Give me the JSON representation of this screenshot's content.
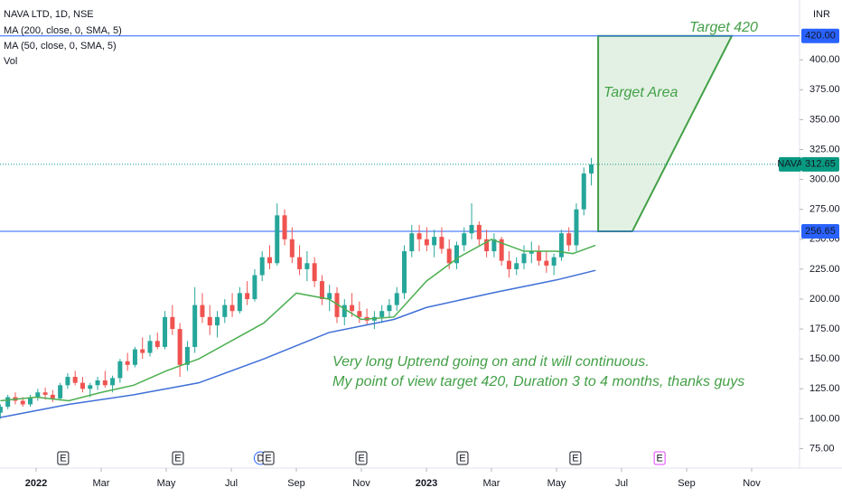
{
  "chart_data": {
    "type": "candlestick",
    "title": "NAVA LTD, 1D, NSE",
    "currency": "INR",
    "xlim": [
      -1.111,
      23.472
    ],
    "ylim": [
      61,
      450
    ],
    "xticks": [
      {
        "value": 0,
        "label": "2022"
      },
      {
        "value": 2,
        "label": "Mar"
      },
      {
        "value": 4,
        "label": "May"
      },
      {
        "value": 6,
        "label": "Jul"
      },
      {
        "value": 8,
        "label": "Sep"
      },
      {
        "value": 10,
        "label": "Nov"
      },
      {
        "value": 12,
        "label": "2023"
      },
      {
        "value": 14,
        "label": "Mar"
      },
      {
        "value": 16,
        "label": "May"
      },
      {
        "value": 18,
        "label": "Jul"
      },
      {
        "value": 20,
        "label": "Sep"
      },
      {
        "value": 22,
        "label": "Nov"
      }
    ],
    "yticks": [
      {
        "value": 75,
        "label": "75.00"
      },
      {
        "value": 100,
        "label": "100.00"
      },
      {
        "value": 125,
        "label": "125.00"
      },
      {
        "value": 150,
        "label": "150.00"
      },
      {
        "value": 175,
        "label": "175.00"
      },
      {
        "value": 200,
        "label": "200.00"
      },
      {
        "value": 225,
        "label": "225.00"
      },
      {
        "value": 250,
        "label": "250.00"
      },
      {
        "value": 275,
        "label": "275.00"
      },
      {
        "value": 300,
        "label": "300.00"
      },
      {
        "value": 325,
        "label": "325.00"
      },
      {
        "value": 350,
        "label": "350.00"
      },
      {
        "value": 375,
        "label": "375.00"
      },
      {
        "value": 400,
        "label": "400.00"
      }
    ],
    "up_color": "#26a69a",
    "down_color": "#ef5350",
    "x": [
      -1.1,
      -0.87,
      -0.64,
      -0.41,
      -0.18,
      0.05,
      0.28,
      0.51,
      0.74,
      0.97,
      1.2,
      1.43,
      1.66,
      1.89,
      2.12,
      2.35,
      2.58,
      2.81,
      3.04,
      3.27,
      3.5,
      3.73,
      3.96,
      4.19,
      4.42,
      4.65,
      4.88,
      5.11,
      5.34,
      5.57,
      5.8,
      6.03,
      6.26,
      6.49,
      6.72,
      6.95,
      7.18,
      7.41,
      7.64,
      7.87,
      8.1,
      8.33,
      8.56,
      8.79,
      9.02,
      9.25,
      9.48,
      9.71,
      9.94,
      10.17,
      10.4,
      10.63,
      10.86,
      11.09,
      11.32,
      11.55,
      11.78,
      12.01,
      12.24,
      12.47,
      12.7,
      12.93,
      13.16,
      13.39,
      13.62,
      13.85,
      14.08,
      14.31,
      14.54,
      14.77,
      15.0,
      15.23,
      15.46,
      15.69,
      15.92,
      16.15,
      16.38,
      16.61,
      16.84,
      17.07
    ],
    "candles": [
      [
        105,
        112,
        100,
        110
      ],
      [
        110,
        120,
        108,
        118
      ],
      [
        118,
        122,
        112,
        115
      ],
      [
        115,
        118,
        110,
        112
      ],
      [
        112,
        120,
        110,
        118
      ],
      [
        118,
        125,
        115,
        122
      ],
      [
        122,
        126,
        116,
        120
      ],
      [
        120,
        124,
        114,
        117
      ],
      [
        117,
        130,
        115,
        128
      ],
      [
        128,
        138,
        125,
        135
      ],
      [
        135,
        140,
        128,
        130
      ],
      [
        130,
        135,
        122,
        125
      ],
      [
        125,
        130,
        118,
        128
      ],
      [
        128,
        135,
        124,
        132
      ],
      [
        132,
        140,
        126,
        128
      ],
      [
        128,
        136,
        122,
        134
      ],
      [
        134,
        150,
        130,
        148
      ],
      [
        148,
        155,
        140,
        145
      ],
      [
        145,
        160,
        143,
        158
      ],
      [
        158,
        168,
        150,
        155
      ],
      [
        155,
        170,
        152,
        165
      ],
      [
        165,
        172,
        158,
        160
      ],
      [
        160,
        190,
        158,
        185
      ],
      [
        185,
        195,
        170,
        175
      ],
      [
        175,
        180,
        135,
        145
      ],
      [
        145,
        165,
        140,
        160
      ],
      [
        160,
        210,
        155,
        195
      ],
      [
        195,
        205,
        180,
        185
      ],
      [
        185,
        195,
        170,
        178
      ],
      [
        178,
        190,
        168,
        185
      ],
      [
        185,
        200,
        180,
        195
      ],
      [
        195,
        205,
        185,
        190
      ],
      [
        190,
        210,
        188,
        205
      ],
      [
        205,
        215,
        195,
        200
      ],
      [
        200,
        225,
        198,
        220
      ],
      [
        220,
        240,
        215,
        235
      ],
      [
        235,
        245,
        225,
        230
      ],
      [
        230,
        280,
        228,
        270
      ],
      [
        270,
        275,
        245,
        250
      ],
      [
        250,
        260,
        230,
        235
      ],
      [
        235,
        245,
        220,
        225
      ],
      [
        225,
        240,
        215,
        230
      ],
      [
        230,
        235,
        210,
        215
      ],
      [
        215,
        220,
        195,
        200
      ],
      [
        200,
        212,
        190,
        205
      ],
      [
        205,
        210,
        180,
        185
      ],
      [
        185,
        200,
        178,
        195
      ],
      [
        195,
        205,
        185,
        190
      ],
      [
        190,
        198,
        180,
        185
      ],
      [
        185,
        192,
        178,
        182
      ],
      [
        182,
        190,
        175,
        185
      ],
      [
        185,
        195,
        180,
        190
      ],
      [
        190,
        200,
        185,
        195
      ],
      [
        195,
        210,
        190,
        205
      ],
      [
        205,
        245,
        200,
        240
      ],
      [
        240,
        262,
        235,
        255
      ],
      [
        255,
        262,
        240,
        250
      ],
      [
        250,
        260,
        240,
        245
      ],
      [
        245,
        258,
        235,
        252
      ],
      [
        252,
        260,
        238,
        242
      ],
      [
        242,
        250,
        225,
        230
      ],
      [
        230,
        248,
        225,
        245
      ],
      [
        245,
        260,
        240,
        255
      ],
      [
        255,
        280,
        250,
        262
      ],
      [
        262,
        265,
        245,
        250
      ],
      [
        250,
        258,
        235,
        240
      ],
      [
        240,
        255,
        235,
        250
      ],
      [
        250,
        252,
        228,
        232
      ],
      [
        232,
        240,
        218,
        225
      ],
      [
        225,
        235,
        220,
        230
      ],
      [
        230,
        245,
        225,
        238
      ],
      [
        238,
        248,
        230,
        240
      ],
      [
        240,
        245,
        228,
        232
      ],
      [
        232,
        240,
        222,
        228
      ],
      [
        228,
        238,
        220,
        235
      ],
      [
        235,
        258,
        232,
        255
      ],
      [
        255,
        260,
        240,
        245
      ],
      [
        245,
        280,
        240,
        275
      ],
      [
        275,
        310,
        270,
        305
      ],
      [
        305,
        318,
        295,
        312.65
      ]
    ],
    "series": [
      {
        "name": "MA (200, close, 0, SMA, 5)",
        "color": "#3f6fd8",
        "x": [
          -1.1,
          1,
          3,
          5,
          7,
          9,
          11,
          12,
          14,
          16,
          17.2
        ],
        "values": [
          101,
          112,
          120,
          130,
          150,
          172,
          183,
          193,
          205,
          216,
          224
        ]
      },
      {
        "name": "MA (50, close, 0, SMA, 5)",
        "color": "#4caf50",
        "x": [
          -1.1,
          0,
          1,
          2,
          3,
          4,
          5,
          6,
          7,
          8,
          9,
          10,
          11,
          12,
          13,
          14,
          15,
          16,
          16.5,
          17.2
        ],
        "values": [
          115,
          118,
          115,
          122,
          128,
          140,
          150,
          165,
          180,
          205,
          200,
          183,
          185,
          215,
          235,
          250,
          240,
          240,
          238,
          245
        ]
      }
    ],
    "volume_label": "Vol",
    "levels": [
      {
        "value": 420,
        "label": "420.00",
        "color": "#2962ff"
      },
      {
        "value": 256.65,
        "label": "256.65",
        "color": "#2962ff"
      }
    ],
    "last_price": {
      "name": "NAVA",
      "value": 312.65,
      "label": "312.65",
      "color": "#089981"
    },
    "target_area": {
      "x": [
        17.28,
        21.39,
        18.33,
        17.28
      ],
      "values": [
        420,
        420,
        256.65,
        256.65
      ],
      "color": "#43a047"
    },
    "annotations": [
      "Target 420",
      "Target Area",
      "Very long Uptrend going on and it will continuous.",
      "My point of view target 420, Duration 3 to 4 months, thanks guys"
    ],
    "events": [
      {
        "x": 0.83,
        "label": "E",
        "color": "#131722"
      },
      {
        "x": 4.36,
        "label": "E",
        "color": "#131722"
      },
      {
        "x": 6.9,
        "label": "D",
        "color": "#2962ff"
      },
      {
        "x": 7.14,
        "label": "E",
        "color": "#131722"
      },
      {
        "x": 10.0,
        "label": "E",
        "color": "#131722"
      },
      {
        "x": 13.11,
        "label": "E",
        "color": "#131722"
      },
      {
        "x": 16.58,
        "label": "E",
        "color": "#131722"
      },
      {
        "x": 19.17,
        "label": "E",
        "color": "#e040fb"
      }
    ]
  }
}
